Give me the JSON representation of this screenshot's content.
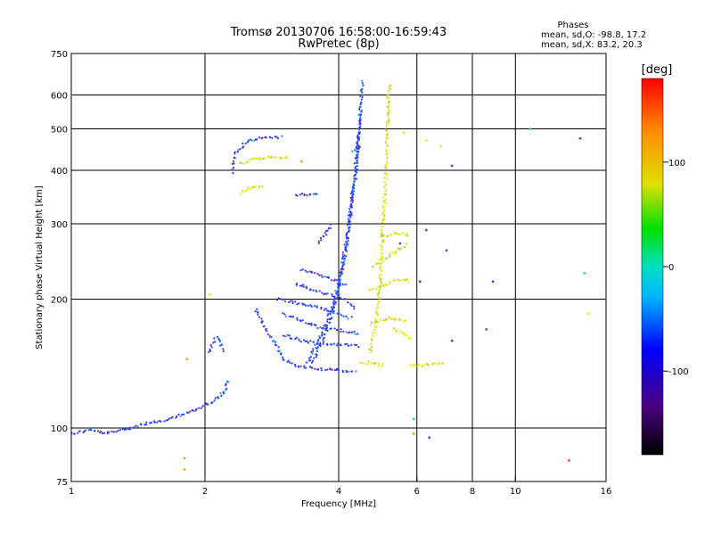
{
  "chart_data": {
    "type": "scatter",
    "title": "Tromsø 20130706 16:58:00-16:59:43",
    "subtitle": "RwPretec (8p)",
    "xlabel": "Frequency [MHz]",
    "ylabel": "Stationary phase Virtual Height [km]",
    "x_scale": "log",
    "y_scale": "log",
    "xlim": [
      1,
      16
    ],
    "ylim": [
      75,
      750
    ],
    "x_ticks": [
      1,
      2,
      4,
      6,
      8,
      10,
      16
    ],
    "y_ticks": [
      75,
      100,
      200,
      300,
      400,
      500,
      600,
      750
    ],
    "x_grid": [
      2,
      4,
      6,
      8,
      10,
      16
    ],
    "y_grid": [
      100,
      200,
      300,
      400,
      500,
      600
    ],
    "grid": true,
    "stats": {
      "heading": "Phases",
      "line1": "mean, sd,O: -98.8, 17.2",
      "line2": "mean, sd,X:  83.2, 20.3"
    },
    "colorbar": {
      "label": "[deg]",
      "ticks": [
        "100",
        "0",
        "-100"
      ],
      "tick_values": [
        100,
        0,
        -100
      ],
      "range": [
        -180,
        180
      ]
    },
    "series": [
      {
        "mode": "O",
        "phase_mean": -98.8,
        "phase_sd": 17.2,
        "color": "#1e3cff",
        "traces": [
          [
            [
              1.0,
              97
            ],
            [
              1.1,
              99
            ],
            [
              1.2,
              97
            ],
            [
              1.35,
              100
            ],
            [
              1.5,
              103
            ],
            [
              1.65,
              104
            ],
            [
              1.75,
              107
            ],
            [
              1.9,
              110
            ],
            [
              2.0,
              113
            ],
            [
              2.15,
              118
            ],
            [
              2.22,
              123
            ],
            [
              2.26,
              130
            ]
          ],
          [
            [
              2.05,
              150
            ],
            [
              2.08,
              158
            ],
            [
              2.12,
              163
            ],
            [
              2.16,
              160
            ],
            [
              2.2,
              150
            ]
          ],
          [
            [
              2.6,
              190
            ],
            [
              2.7,
              175
            ],
            [
              2.8,
              165
            ],
            [
              2.9,
              155
            ],
            [
              3.0,
              145
            ],
            [
              3.2,
              140
            ],
            [
              3.5,
              138
            ],
            [
              3.8,
              137
            ],
            [
              4.1,
              136
            ],
            [
              4.4,
              135
            ]
          ],
          [
            [
              3.0,
              165
            ],
            [
              3.3,
              160
            ],
            [
              3.6,
              158
            ],
            [
              3.9,
              157
            ],
            [
              4.2,
              156
            ],
            [
              4.45,
              155
            ]
          ],
          [
            [
              3.0,
              185
            ],
            [
              3.3,
              178
            ],
            [
              3.6,
              172
            ],
            [
              3.9,
              170
            ],
            [
              4.2,
              168
            ],
            [
              4.45,
              166
            ]
          ],
          [
            [
              2.9,
              200
            ],
            [
              3.3,
              195
            ],
            [
              3.7,
              190
            ],
            [
              4.0,
              185
            ],
            [
              4.3,
              180
            ]
          ],
          [
            [
              3.2,
              218
            ],
            [
              3.5,
              210
            ],
            [
              3.8,
              205
            ],
            [
              4.1,
              200
            ],
            [
              4.4,
              190
            ]
          ],
          [
            [
              3.3,
              235
            ],
            [
              3.6,
              228
            ],
            [
              3.9,
              222
            ],
            [
              4.2,
              215
            ]
          ],
          [
            [
              3.4,
              142
            ],
            [
              3.7,
              170
            ],
            [
              3.9,
              195
            ],
            [
              4.0,
              220
            ],
            [
              4.1,
              250
            ],
            [
              4.2,
              290
            ],
            [
              4.3,
              340
            ],
            [
              4.38,
              400
            ],
            [
              4.42,
              460
            ],
            [
              4.46,
              520
            ],
            [
              4.5,
              580
            ],
            [
              4.52,
              650
            ]
          ],
          [
            [
              3.5,
              142
            ],
            [
              3.8,
              175
            ],
            [
              4.0,
              210
            ],
            [
              4.15,
              260
            ],
            [
              4.25,
              320
            ],
            [
              4.33,
              380
            ],
            [
              4.4,
              440
            ],
            [
              4.45,
              500
            ],
            [
              4.48,
              560
            ]
          ],
          [
            [
              2.3,
              395
            ],
            [
              2.35,
              440
            ],
            [
              2.5,
              470
            ],
            [
              2.7,
              475
            ],
            [
              3.0,
              478
            ]
          ],
          [
            [
              3.2,
              350
            ],
            [
              3.4,
              352
            ],
            [
              3.6,
              355
            ]
          ],
          [
            [
              3.6,
              270
            ],
            [
              3.75,
              285
            ],
            [
              3.85,
              300
            ]
          ],
          [
            [
              4.3,
              445
            ],
            [
              4.4,
              450
            ],
            [
              4.5,
              455
            ]
          ]
        ]
      },
      {
        "mode": "X",
        "phase_mean": 83.2,
        "phase_sd": 20.3,
        "color": "#e6e600",
        "traces": [
          [
            [
              4.5,
              142
            ],
            [
              4.7,
              142
            ],
            [
              4.9,
              141
            ],
            [
              5.1,
              140
            ]
          ],
          [
            [
              4.7,
              150
            ],
            [
              4.85,
              175
            ],
            [
              4.95,
              215
            ],
            [
              5.0,
              260
            ],
            [
              5.05,
              320
            ],
            [
              5.1,
              380
            ],
            [
              5.12,
              440
            ],
            [
              5.15,
              520
            ],
            [
              5.18,
              600
            ],
            [
              5.2,
              640
            ]
          ],
          [
            [
              4.7,
              175
            ],
            [
              4.9,
              178
            ],
            [
              5.1,
              180
            ],
            [
              5.4,
              180
            ],
            [
              5.7,
              178
            ]
          ],
          [
            [
              4.7,
              210
            ],
            [
              5.0,
              215
            ],
            [
              5.3,
              220
            ],
            [
              5.6,
              222
            ],
            [
              5.8,
              220
            ]
          ],
          [
            [
              4.8,
              240
            ],
            [
              5.1,
              250
            ],
            [
              5.4,
              260
            ],
            [
              5.7,
              270
            ]
          ],
          [
            [
              5.0,
              280
            ],
            [
              5.3,
              285
            ],
            [
              5.6,
              285
            ],
            [
              5.8,
              280
            ]
          ],
          [
            [
              2.4,
              355
            ],
            [
              2.55,
              365
            ],
            [
              2.7,
              365
            ]
          ],
          [
            [
              2.4,
              415
            ],
            [
              2.6,
              425
            ],
            [
              2.9,
              430
            ],
            [
              3.1,
              430
            ]
          ],
          [
            [
              5.8,
              140
            ],
            [
              6.2,
              140
            ],
            [
              6.6,
              141
            ],
            [
              6.9,
              142
            ]
          ],
          [
            [
              5.3,
              170
            ],
            [
              5.5,
              168
            ],
            [
              5.7,
              165
            ],
            [
              5.8,
              160
            ]
          ]
        ]
      }
    ],
    "scatter_points": [
      {
        "x": 10.8,
        "y": 500,
        "phase": -10
      },
      {
        "x": 7.2,
        "y": 410,
        "phase": -100
      },
      {
        "x": 6.8,
        "y": 455,
        "phase": 90
      },
      {
        "x": 6.3,
        "y": 470,
        "phase": 100
      },
      {
        "x": 14.0,
        "y": 475,
        "phase": -100
      },
      {
        "x": 14.3,
        "y": 230,
        "phase": -10
      },
      {
        "x": 8.9,
        "y": 220,
        "phase": -100
      },
      {
        "x": 8.6,
        "y": 170,
        "phase": -100
      },
      {
        "x": 7.2,
        "y": 160,
        "phase": -100
      },
      {
        "x": 14.6,
        "y": 185,
        "phase": 100
      },
      {
        "x": 13.2,
        "y": 84,
        "phase": 160
      },
      {
        "x": 6.4,
        "y": 95,
        "phase": -100
      },
      {
        "x": 5.9,
        "y": 97,
        "phase": 150
      },
      {
        "x": 5.9,
        "y": 105,
        "phase": -10
      },
      {
        "x": 5.5,
        "y": 270,
        "phase": -100
      },
      {
        "x": 1.8,
        "y": 85,
        "phase": 140
      },
      {
        "x": 1.8,
        "y": 80,
        "phase": 120
      },
      {
        "x": 2.05,
        "y": 205,
        "phase": 100
      },
      {
        "x": 1.82,
        "y": 145,
        "phase": 120
      },
      {
        "x": 3.3,
        "y": 420,
        "phase": 120
      },
      {
        "x": 5.6,
        "y": 490,
        "phase": 100
      },
      {
        "x": 6.1,
        "y": 220,
        "phase": -100
      },
      {
        "x": 6.3,
        "y": 290,
        "phase": -100
      },
      {
        "x": 7.0,
        "y": 260,
        "phase": -100
      }
    ]
  }
}
